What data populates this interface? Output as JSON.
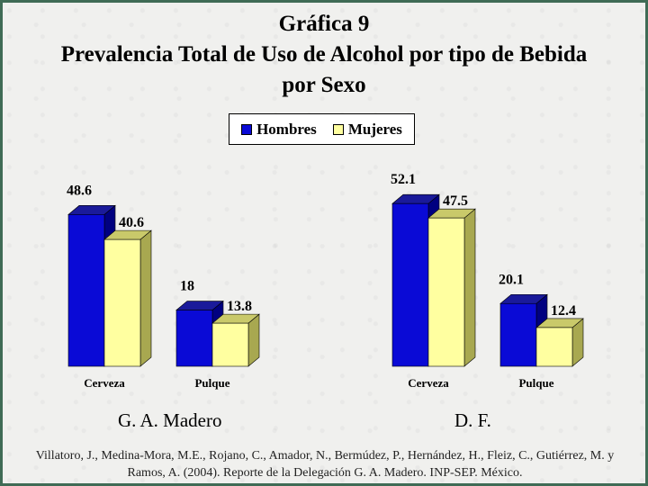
{
  "title": {
    "line1": "Gráfica 9",
    "line2": "Prevalencia Total de Uso de Alcohol por tipo de Bebida",
    "line3": "por Sexo"
  },
  "legend": {
    "hombres": "Hombres",
    "mujeres": "Mujeres"
  },
  "colors": {
    "hombres": "#0a0ad6",
    "mujeres": "#ffffa0"
  },
  "chart_data": [
    {
      "type": "bar",
      "subtitle": "G. A. Madero",
      "categories": [
        "Cerveza",
        "Pulque"
      ],
      "series": [
        {
          "name": "Hombres",
          "values": [
            48.6,
            18
          ]
        },
        {
          "name": "Mujeres",
          "values": [
            40.6,
            13.8
          ]
        }
      ],
      "data_labels": [
        [
          "48.6",
          "18"
        ],
        [
          "40.6",
          "13.8"
        ]
      ]
    },
    {
      "type": "bar",
      "subtitle": "D. F.",
      "categories": [
        "Cerveza",
        "Pulque"
      ],
      "series": [
        {
          "name": "Hombres",
          "values": [
            52.1,
            20.1
          ]
        },
        {
          "name": "Mujeres",
          "values": [
            47.5,
            12.4
          ]
        }
      ],
      "data_labels": [
        [
          "52.1",
          "20.1"
        ],
        [
          "47.5",
          "12.4"
        ]
      ]
    }
  ],
  "citation": "Villatoro, J., Medina-Mora, M.E., Rojano, C., Amador, N., Bermúdez, P., Hernández, H., Fleiz, C., Gutiérrez, M. y Ramos, A. (2004). Reporte de la Delegación G. A. Madero. INP-SEP. México."
}
